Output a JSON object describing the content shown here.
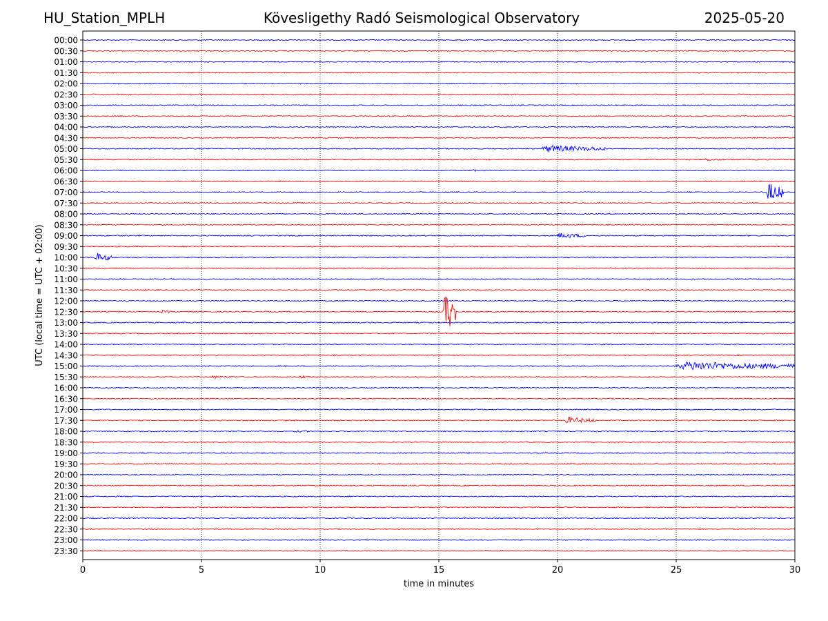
{
  "header": {
    "station": "HU_Station_MPLH",
    "observatory": "Kövesligethy Radó Seismological Observatory",
    "date": "2025-05-20"
  },
  "chart_data": {
    "type": "line",
    "title": "Kövesligethy Radó Seismological Observatory",
    "xlabel": "time in minutes",
    "ylabel": "UTC (local time = UTC + 02:00)",
    "xlim": [
      0,
      30
    ],
    "xticks": [
      0,
      5,
      10,
      15,
      20,
      25,
      30
    ],
    "xtick_labels": [
      "0",
      "5",
      "10",
      "15",
      "20",
      "25",
      "30"
    ],
    "grid": "vertical dotted at each x tick",
    "trace_colors": [
      "#0000ff",
      "#ff0000"
    ],
    "rows": [
      "00:00",
      "00:30",
      "01:00",
      "01:30",
      "02:00",
      "02:30",
      "03:00",
      "03:30",
      "04:00",
      "04:30",
      "05:00",
      "05:30",
      "06:00",
      "06:30",
      "07:00",
      "07:30",
      "08:00",
      "08:30",
      "09:00",
      "09:30",
      "10:00",
      "10:30",
      "11:00",
      "11:30",
      "12:00",
      "12:30",
      "13:00",
      "13:30",
      "14:00",
      "14:30",
      "15:00",
      "15:30",
      "16:00",
      "16:30",
      "17:00",
      "17:30",
      "18:00",
      "18:30",
      "19:00",
      "19:30",
      "20:00",
      "20:30",
      "21:00",
      "21:30",
      "22:00",
      "22:30",
      "23:00",
      "23:30"
    ],
    "events": [
      {
        "row": "05:00",
        "start_min": 19.3,
        "end_min": 22.0,
        "amplitude": 0.7
      },
      {
        "row": "05:30",
        "start_min": 26.2,
        "end_min": 27.0,
        "amplitude": 0.25
      },
      {
        "row": "06:00",
        "start_min": 16.3,
        "end_min": 17.2,
        "amplitude": 0.2
      },
      {
        "row": "07:00",
        "start_min": 28.8,
        "end_min": 29.5,
        "amplitude": 2.0
      },
      {
        "row": "09:00",
        "start_min": 20.0,
        "end_min": 21.2,
        "amplitude": 0.6
      },
      {
        "row": "10:00",
        "start_min": 0.5,
        "end_min": 1.2,
        "amplitude": 0.9
      },
      {
        "row": "12:30",
        "start_min": 15.2,
        "end_min": 15.7,
        "amplitude": 4.5
      },
      {
        "row": "12:30",
        "start_min": 3.3,
        "end_min": 3.7,
        "amplitude": 0.3
      },
      {
        "row": "15:00",
        "start_min": 25.0,
        "end_min": 30.0,
        "amplitude": 0.9
      },
      {
        "row": "15:30",
        "start_min": 5.3,
        "end_min": 6.5,
        "amplitude": 0.25
      },
      {
        "row": "15:30",
        "start_min": 9.1,
        "end_min": 9.7,
        "amplitude": 0.35
      },
      {
        "row": "17:30",
        "start_min": 20.3,
        "end_min": 21.6,
        "amplitude": 0.65
      },
      {
        "row": "18:00",
        "start_min": 8.8,
        "end_min": 10.0,
        "amplitude": 0.2
      }
    ]
  }
}
